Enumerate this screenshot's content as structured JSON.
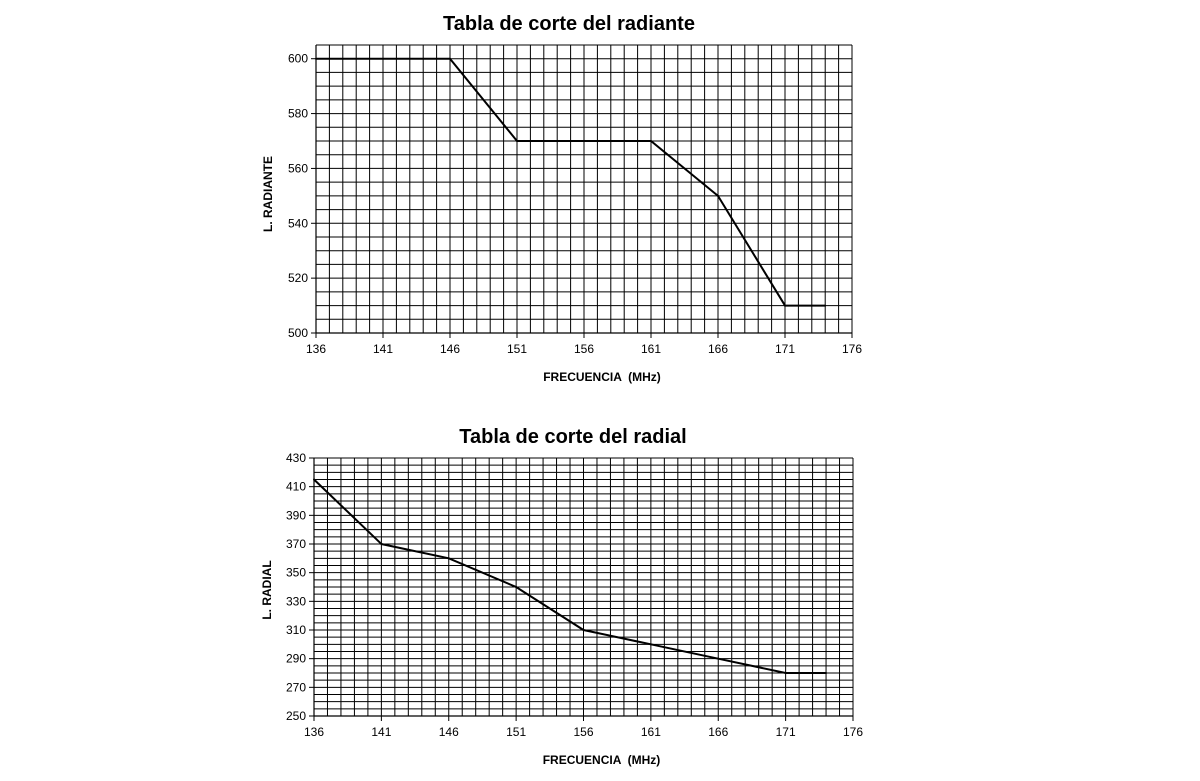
{
  "chart_data": [
    {
      "type": "line",
      "title": "Tabla de corte del radiante",
      "xlabel": "FRECUENCIA  (MHz)",
      "ylabel": "L. RADIANTE",
      "xlim": [
        136,
        176
      ],
      "ylim": [
        500,
        605
      ],
      "xticks": [
        136,
        141,
        146,
        151,
        156,
        161,
        166,
        171,
        176
      ],
      "yticks": [
        500,
        520,
        540,
        560,
        580,
        600
      ],
      "grid": true,
      "grid_x_step": 1,
      "grid_y_step": 5,
      "legend": "none",
      "series": [
        {
          "x": [
            136,
            146,
            151,
            161,
            166,
            171,
            174
          ],
          "y": [
            600,
            600,
            570,
            570,
            550,
            510,
            510
          ],
          "color": "#000000"
        }
      ]
    },
    {
      "type": "line",
      "title": "Tabla de corte del radial",
      "xlabel": "FRECUENCIA  (MHz)",
      "ylabel": "L. RADIAL",
      "xlim": [
        136,
        176
      ],
      "ylim": [
        250,
        430
      ],
      "xticks": [
        136,
        141,
        146,
        151,
        156,
        161,
        166,
        171,
        176
      ],
      "yticks": [
        250,
        270,
        290,
        310,
        330,
        350,
        370,
        390,
        410,
        430
      ],
      "grid": true,
      "grid_x_step": 1,
      "grid_y_step": 5,
      "legend": "none",
      "series": [
        {
          "x": [
            136,
            141,
            146,
            151,
            156,
            161,
            166,
            171,
            174
          ],
          "y": [
            415,
            370,
            360,
            340,
            310,
            300,
            290,
            280,
            280
          ],
          "color": "#000000"
        }
      ]
    }
  ]
}
